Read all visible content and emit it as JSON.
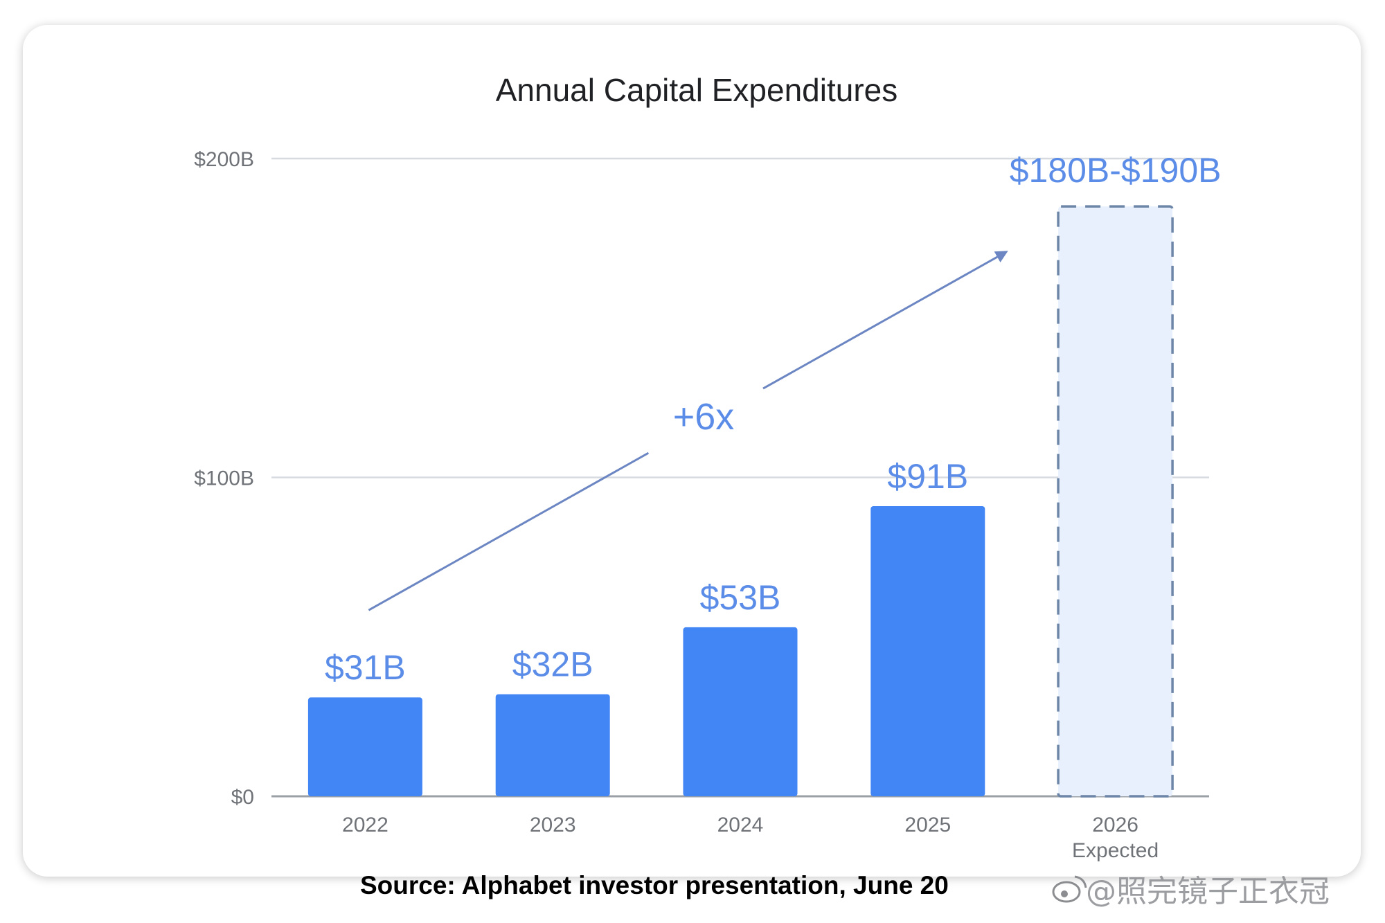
{
  "chart_data": {
    "type": "bar",
    "title": "Annual Capital Expenditures",
    "categories": [
      "2022",
      "2023",
      "2024",
      "2025",
      "2026"
    ],
    "category_sublabels": [
      "",
      "",
      "",
      "",
      "Expected"
    ],
    "values": [
      31,
      32,
      53,
      91,
      185
    ],
    "value_labels": [
      "$31B",
      "$32B",
      "$53B",
      "$91B",
      "$180B-$190B"
    ],
    "projected": [
      false,
      false,
      false,
      false,
      true
    ],
    "unit": "$B",
    "ylim": [
      0,
      200
    ],
    "yticks": [
      0,
      100,
      200
    ],
    "ytick_labels": [
      "$0",
      "$100B",
      "$200B"
    ],
    "grid": true,
    "annotation": {
      "text": "+6x",
      "from_category": "2022",
      "to_category": "2026"
    },
    "colors": {
      "bar": "#4285f4",
      "projected_fill": "#e8f0fd",
      "projected_stroke": "#6d86a8",
      "label": "#5b8de8"
    }
  },
  "source_note": "Source: Alphabet investor presentation, June 20",
  "watermark": "@照完镜子正衣冠"
}
